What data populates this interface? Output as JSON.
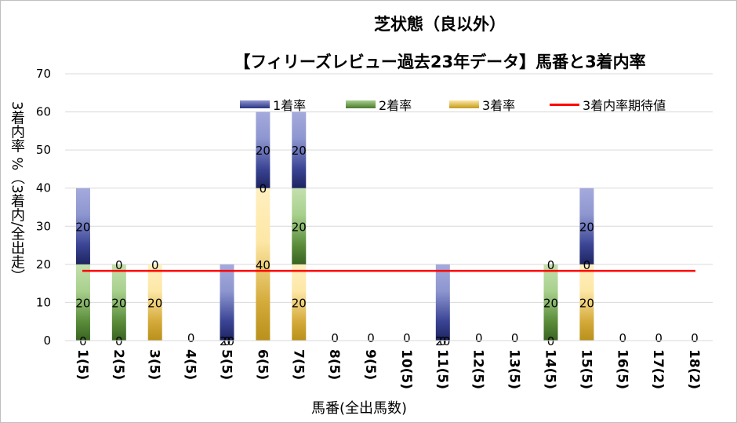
{
  "chart_data": {
    "type": "bar",
    "stacked": true,
    "title": "芝状態（良以外）",
    "subtitle": "【フィリーズレビュー過去23年データ】馬番と3着内率",
    "xlabel": "馬番(全出馬数)",
    "ylabel": "3着内率 %（3着内/全出走）",
    "ylim": [
      0,
      70
    ],
    "yticks": [
      0,
      10,
      20,
      30,
      40,
      50,
      60,
      70
    ],
    "categories": [
      "1(5)",
      "2(5)",
      "3(5)",
      "4(5)",
      "5(5)",
      "6(5)",
      "7(5)",
      "8(5)",
      "9(5)",
      "10(5)",
      "11(5)",
      "12(5)",
      "13(5)",
      "14(5)",
      "15(5)",
      "16(5)",
      "17(2)",
      "18(2)"
    ],
    "series": [
      {
        "name": "3着率",
        "values": [
          0,
          0,
          20,
          0,
          0,
          40,
          20,
          0,
          0,
          0,
          0,
          0,
          0,
          0,
          20,
          0,
          0,
          0
        ],
        "color": "#c49a1c"
      },
      {
        "name": "2着率",
        "values": [
          20,
          20,
          0,
          0,
          0,
          0,
          20,
          0,
          0,
          0,
          0,
          0,
          0,
          20,
          0,
          0,
          0,
          0
        ],
        "color": "#4a7a2e"
      },
      {
        "name": "1着率",
        "values": [
          20,
          0,
          0,
          0,
          20,
          20,
          20,
          0,
          0,
          0,
          20,
          0,
          0,
          0,
          20,
          0,
          0,
          0
        ],
        "color": "#2a3382"
      }
    ],
    "data_labels": [
      [
        "0",
        "20",
        "20"
      ],
      [
        "0",
        "20",
        "0"
      ],
      [
        "20",
        "0"
      ],
      [
        "0"
      ],
      [
        "0",
        "20"
      ],
      [
        "40",
        "0",
        "20"
      ],
      [
        "20",
        "20",
        "20"
      ],
      [
        "0"
      ],
      [
        "0"
      ],
      [
        "0"
      ],
      [
        "0",
        "20"
      ],
      [
        "0"
      ],
      [
        "0"
      ],
      [
        "0",
        "20",
        "0"
      ],
      [
        "20",
        "0",
        "20"
      ],
      [
        "0"
      ],
      [
        "0"
      ],
      [
        "0"
      ]
    ],
    "expected_line": {
      "name": "3着内率期待値",
      "value": 18.3,
      "color": "#ff0000"
    },
    "grid": true,
    "legend": "top"
  },
  "legend": {
    "items": [
      "1着率",
      "2着率",
      "3着率",
      "3着内率期待値"
    ]
  }
}
